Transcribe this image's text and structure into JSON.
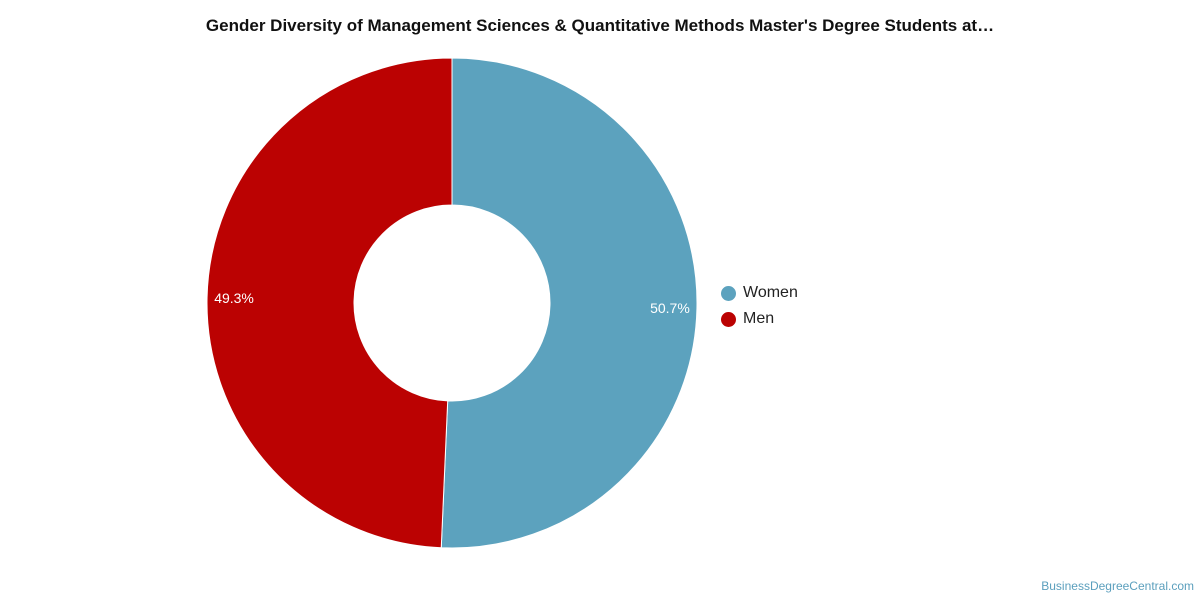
{
  "chart_data": {
    "type": "pie",
    "title": "Gender Diversity of Management Sciences & Quantitative Methods Master's Degree Students at…",
    "donut": true,
    "legend_position": "right",
    "slices": [
      {
        "label": "Women",
        "value": 50.7,
        "display": "50.7%",
        "color": "#5ca2be"
      },
      {
        "label": "Men",
        "value": 49.3,
        "display": "49.3%",
        "color": "#bb0202"
      }
    ]
  },
  "watermark": "BusinessDegreeCentral.com"
}
